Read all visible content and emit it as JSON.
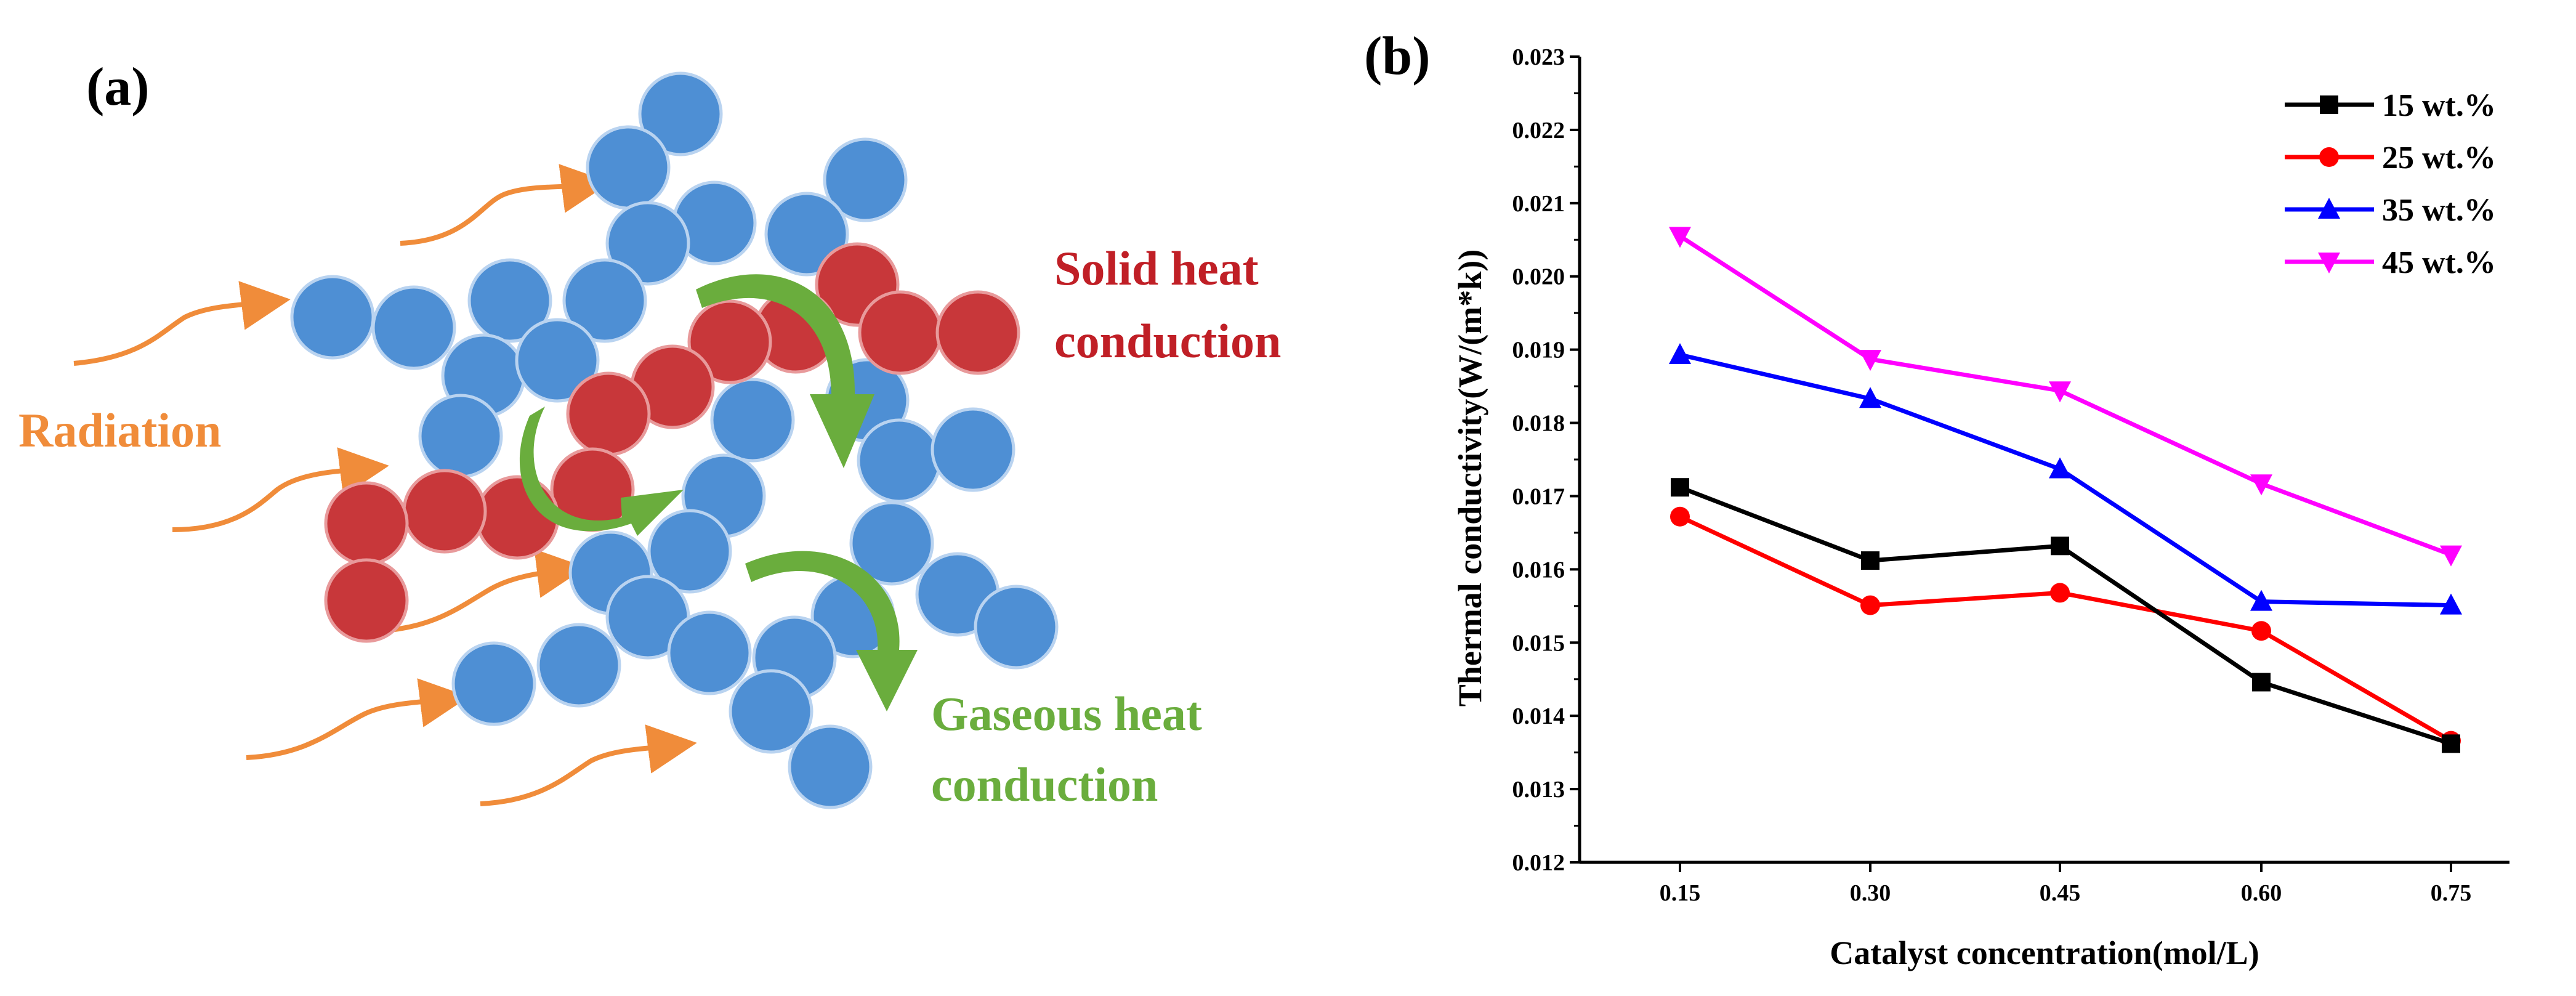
{
  "panel_a": {
    "label": "(a)",
    "radiation_label": "Radiation",
    "solid_label_line1": "Solid heat",
    "solid_label_line2": "conduction",
    "gas_label_line1": "Gaseous heat",
    "gas_label_line2": "conduction",
    "colors": {
      "blue_particle": "#4e8fd4",
      "red_particle": "#c8373a",
      "radiation": "#f08c3a",
      "solid": "#c01f26",
      "gas": "#6aad3d"
    }
  },
  "panel_b": {
    "label": "(b)"
  },
  "chart_data": {
    "type": "line",
    "categories": [
      "0.15",
      "0.30",
      "0.45",
      "0.60",
      "0.75"
    ],
    "xlabel": "Catalyst concentration(mol/L)",
    "ylabel": "Thermal conductivity(W/(m*k))",
    "ylim": [
      0.012,
      0.023
    ],
    "yticks": [
      "0.012",
      "0.013",
      "0.014",
      "0.015",
      "0.016",
      "0.017",
      "0.018",
      "0.019",
      "0.020",
      "0.021",
      "0.022",
      "0.023"
    ],
    "legend_position": "top-right",
    "series": [
      {
        "name": "15 wt.%",
        "color": "#000000",
        "marker": "square",
        "values": [
          0.01712,
          0.01612,
          0.01632,
          0.01446,
          0.01362
        ]
      },
      {
        "name": "25 wt.%",
        "color": "#ff0000",
        "marker": "circle",
        "values": [
          0.01672,
          0.01551,
          0.01568,
          0.01516,
          0.01366
        ]
      },
      {
        "name": "35 wt.%",
        "color": "#0000ff",
        "marker": "triangle-up",
        "values": [
          0.01893,
          0.01833,
          0.01737,
          0.01556,
          0.01551
        ]
      },
      {
        "name": "45 wt.%",
        "color": "#ff00ff",
        "marker": "triangle-down",
        "values": [
          0.02055,
          0.01887,
          0.01844,
          0.01717,
          0.0162
        ]
      }
    ]
  }
}
